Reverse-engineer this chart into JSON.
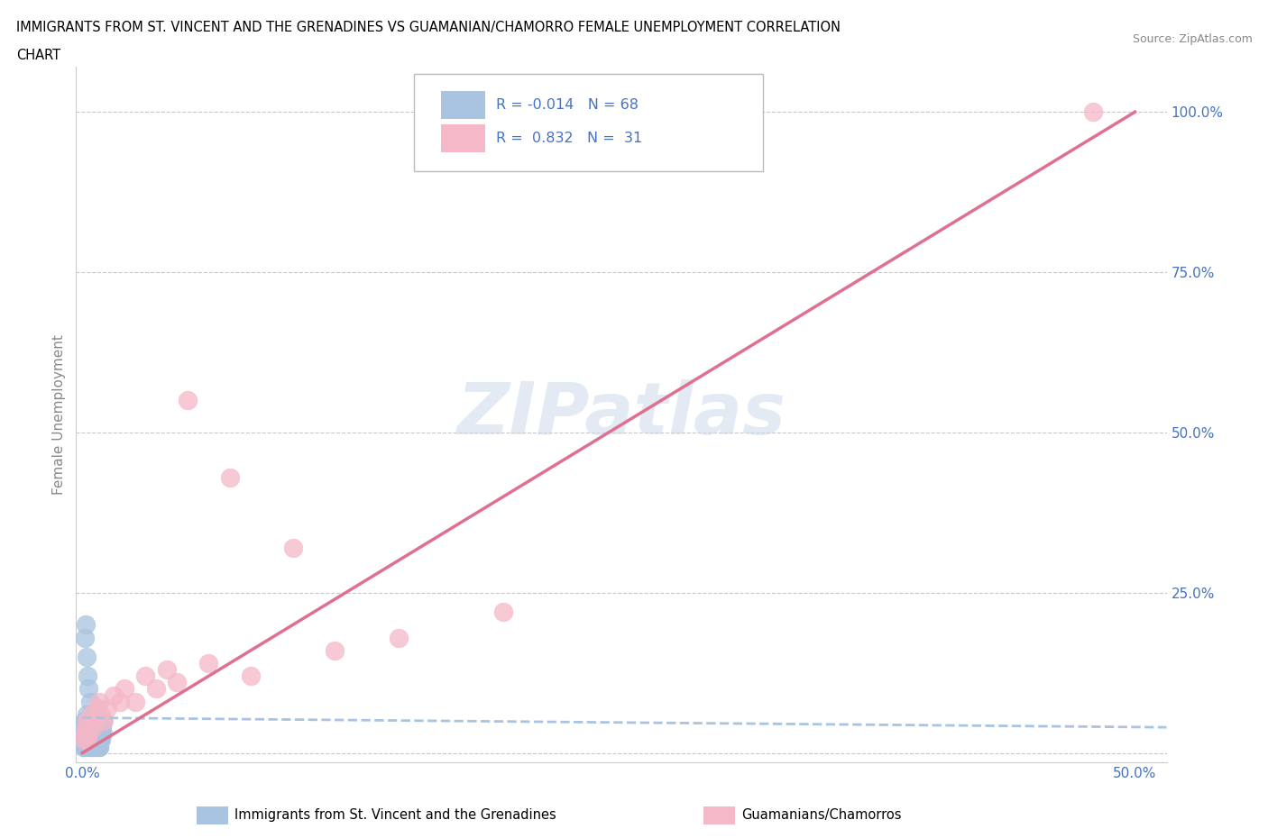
{
  "title_line1": "IMMIGRANTS FROM ST. VINCENT AND THE GRENADINES VS GUAMANIAN/CHAMORRO FEMALE UNEMPLOYMENT CORRELATION",
  "title_line2": "CHART",
  "source_text": "Source: ZipAtlas.com",
  "ylabel": "Female Unemployment",
  "xlim": [
    -0.003,
    0.515
  ],
  "ylim": [
    -0.015,
    1.07
  ],
  "blue_color": "#a8c4e0",
  "blue_edge_color": "#5b9bd5",
  "pink_color": "#f4b8c8",
  "pink_edge_color": "#e07090",
  "blue_trend_color": "#a8c4e0",
  "pink_trend_color": "#e07090",
  "text_color": "#4472c4",
  "grid_color": "#c8c8c8",
  "background_color": "#ffffff",
  "watermark": "ZIPatlas",
  "legend_R_blue": "-0.014",
  "legend_N_blue": "68",
  "legend_R_pink": "0.832",
  "legend_N_pink": "31",
  "blue_x": [
    0.0002,
    0.0005,
    0.0008,
    0.001,
    0.0012,
    0.0015,
    0.002,
    0.0022,
    0.0025,
    0.003,
    0.0032,
    0.0035,
    0.004,
    0.0042,
    0.0045,
    0.005,
    0.0052,
    0.0055,
    0.006,
    0.0065,
    0.007,
    0.0075,
    0.008,
    0.0082,
    0.009,
    0.0095,
    0.001,
    0.0015,
    0.002,
    0.0025,
    0.003,
    0.0035,
    0.004,
    0.0045,
    0.005,
    0.0055,
    0.006,
    0.007,
    0.008,
    0.009,
    0.0001,
    0.0003,
    0.0006,
    0.0009,
    0.0011,
    0.0014,
    0.0017,
    0.0019,
    0.0023,
    0.0027,
    0.0031,
    0.0033,
    0.0038,
    0.0041,
    0.0044,
    0.0048,
    0.0051,
    0.0054,
    0.0058,
    0.0062,
    0.0066,
    0.0071,
    0.0076,
    0.0081,
    0.0086,
    0.009,
    0.0093,
    0.0097
  ],
  "blue_y": [
    0.02,
    0.03,
    0.04,
    0.05,
    0.01,
    0.02,
    0.03,
    0.06,
    0.04,
    0.02,
    0.01,
    0.03,
    0.05,
    0.02,
    0.04,
    0.01,
    0.03,
    0.05,
    0.02,
    0.04,
    0.06,
    0.03,
    0.01,
    0.02,
    0.04,
    0.03,
    0.18,
    0.2,
    0.15,
    0.12,
    0.1,
    0.08,
    0.06,
    0.05,
    0.04,
    0.03,
    0.02,
    0.01,
    0.02,
    0.03,
    0.01,
    0.02,
    0.03,
    0.04,
    0.05,
    0.02,
    0.01,
    0.03,
    0.02,
    0.04,
    0.05,
    0.03,
    0.02,
    0.01,
    0.03,
    0.04,
    0.02,
    0.01,
    0.03,
    0.02,
    0.04,
    0.03,
    0.02,
    0.01,
    0.03,
    0.02,
    0.04,
    0.05
  ],
  "pink_x": [
    0.0005,
    0.001,
    0.0015,
    0.002,
    0.0025,
    0.003,
    0.004,
    0.005,
    0.006,
    0.007,
    0.008,
    0.009,
    0.01,
    0.012,
    0.015,
    0.018,
    0.02,
    0.025,
    0.03,
    0.035,
    0.04,
    0.045,
    0.05,
    0.06,
    0.07,
    0.08,
    0.1,
    0.12,
    0.15,
    0.2,
    0.48
  ],
  "pink_y": [
    0.02,
    0.03,
    0.04,
    0.05,
    0.02,
    0.03,
    0.06,
    0.04,
    0.05,
    0.07,
    0.08,
    0.06,
    0.05,
    0.07,
    0.09,
    0.08,
    0.1,
    0.08,
    0.12,
    0.1,
    0.13,
    0.11,
    0.55,
    0.14,
    0.43,
    0.12,
    0.32,
    0.16,
    0.18,
    0.22,
    1.0
  ],
  "blue_trend_x": [
    0.0,
    0.515
  ],
  "blue_trend_y": [
    0.055,
    0.04
  ],
  "pink_trend_x": [
    0.0,
    0.5
  ],
  "pink_trend_y": [
    0.0,
    1.0
  ]
}
